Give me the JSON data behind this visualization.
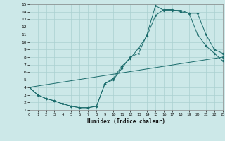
{
  "xlabel": "Humidex (Indice chaleur)",
  "xlim": [
    0,
    23
  ],
  "ylim": [
    1,
    15
  ],
  "xticks": [
    0,
    1,
    2,
    3,
    4,
    5,
    6,
    7,
    8,
    9,
    10,
    11,
    12,
    13,
    14,
    15,
    16,
    17,
    18,
    19,
    20,
    21,
    22,
    23
  ],
  "yticks": [
    1,
    2,
    3,
    4,
    5,
    6,
    7,
    8,
    9,
    10,
    11,
    12,
    13,
    14,
    15
  ],
  "bg_color": "#cce8e8",
  "grid_color": "#aad0d0",
  "line_color": "#1a6b6b",
  "line1_x": [
    0,
    1,
    2,
    3,
    4,
    5,
    6,
    7,
    8,
    9,
    10,
    11,
    12,
    13,
    14,
    15,
    16,
    17,
    18,
    19,
    20,
    21,
    22,
    23
  ],
  "line1_y": [
    4.0,
    3.0,
    2.5,
    2.2,
    1.8,
    1.5,
    1.3,
    1.3,
    1.5,
    4.5,
    5.0,
    6.5,
    8.0,
    8.5,
    11.0,
    14.8,
    14.2,
    14.2,
    14.2,
    13.8,
    11.0,
    9.5,
    8.5,
    7.5
  ],
  "line2_x": [
    0,
    23
  ],
  "line2_y": [
    4.0,
    8.0
  ],
  "line3_x": [
    0,
    1,
    2,
    3,
    4,
    5,
    6,
    7,
    8,
    9,
    10,
    11,
    12,
    13,
    14,
    15,
    16,
    17,
    18,
    19,
    20,
    21,
    22,
    23
  ],
  "line3_y": [
    4.0,
    3.0,
    2.5,
    2.2,
    1.8,
    1.5,
    1.3,
    1.3,
    1.5,
    4.5,
    5.2,
    6.8,
    7.8,
    9.2,
    10.8,
    13.5,
    14.3,
    14.3,
    14.0,
    13.8,
    13.8,
    11.0,
    9.0,
    8.5
  ]
}
